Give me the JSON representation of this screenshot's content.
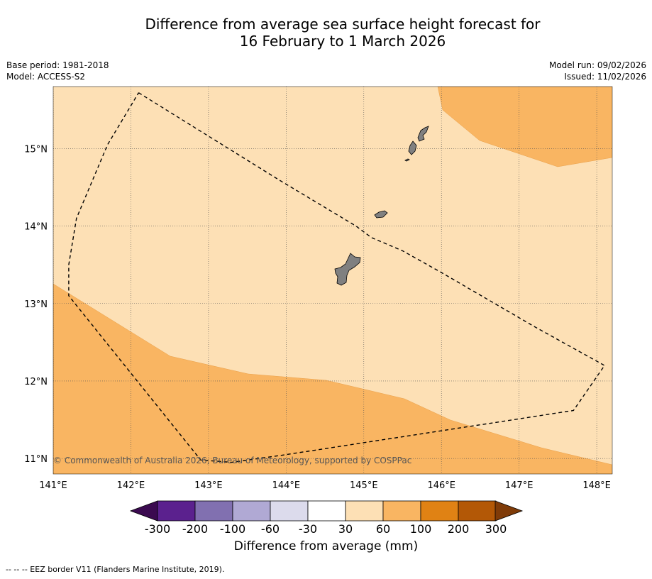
{
  "title": {
    "line1": "Difference from average sea surface height forecast for",
    "line2": "16 February to 1 March 2026"
  },
  "meta": {
    "base_period": "Base period: 1981-2018",
    "model": "Model: ACCESS-S2",
    "model_run": "Model run: 09/02/2026",
    "issued": "Issued: 11/02/2026"
  },
  "map": {
    "lon_range": [
      141.0,
      148.2
    ],
    "lat_range": [
      10.8,
      15.8
    ],
    "lon_ticks": [
      "141°E",
      "142°E",
      "143°E",
      "144°E",
      "145°E",
      "146°E",
      "147°E",
      "148°E"
    ],
    "lat_ticks": [
      "11°N",
      "12°N",
      "13°N",
      "14°N",
      "15°N"
    ],
    "copyright": "© Commonwealth of Australia 2026, Bureau of Meteorology, supported by COSPPac",
    "colors": {
      "band_30_60": "#fde0b5",
      "band_60_100": "#f9b562",
      "land": "#808080"
    },
    "eez_border_lonlat": [
      [
        142.1,
        15.72
      ],
      [
        143.9,
        14.6
      ],
      [
        144.9,
        14.0
      ],
      [
        145.1,
        13.85
      ],
      [
        145.5,
        13.68
      ],
      [
        146.0,
        13.4
      ],
      [
        147.2,
        12.7
      ],
      [
        148.1,
        12.2
      ],
      [
        147.7,
        11.62
      ],
      [
        144.0,
        11.05
      ],
      [
        143.3,
        10.95
      ],
      [
        142.9,
        10.98
      ],
      [
        141.6,
        12.6
      ],
      [
        141.2,
        13.1
      ],
      [
        141.2,
        13.5
      ],
      [
        141.3,
        14.1
      ],
      [
        141.7,
        15.05
      ],
      [
        142.1,
        15.72
      ]
    ]
  },
  "colorbar": {
    "title": "Difference from average (mm)",
    "ticks": [
      "-300",
      "-200",
      "-100",
      "-60",
      "-30",
      "30",
      "60",
      "100",
      "200",
      "300"
    ],
    "colors": [
      "#3b0a50",
      "#5b218e",
      "#8170b0",
      "#b0a9d4",
      "#dcdbec",
      "#ffffff",
      "#fde0b5",
      "#f9b562",
      "#e08214",
      "#b35806",
      "#7f3b08"
    ]
  },
  "footer": "-- -- -- EEZ border V11 (Flanders Marine Institute, 2019)."
}
